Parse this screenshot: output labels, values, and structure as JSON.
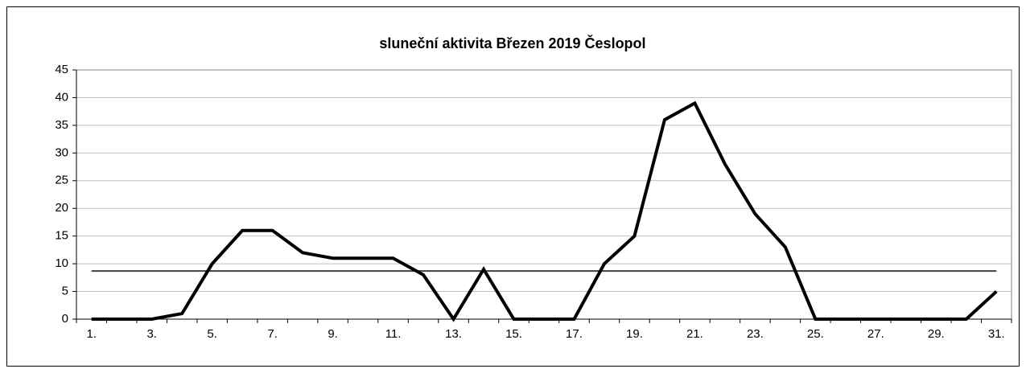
{
  "chart_data": {
    "type": "line",
    "title": "sluneční aktivita Březen 2019 Česlopol",
    "categories": [
      "1.",
      null,
      "3.",
      null,
      "5.",
      null,
      "7.",
      null,
      "9.",
      null,
      "11.",
      null,
      "13.",
      null,
      "15.",
      null,
      "17.",
      null,
      "19.",
      null,
      "21.",
      null,
      "23.",
      null,
      "25.",
      null,
      "27.",
      null,
      "29.",
      null,
      "31."
    ],
    "values": [
      0,
      0,
      0,
      1,
      10,
      16,
      16,
      12,
      11,
      11,
      11,
      8,
      0,
      9,
      0,
      0,
      0,
      10,
      15,
      36,
      39,
      28,
      19,
      13,
      0,
      0,
      0,
      0,
      0,
      0,
      5
    ],
    "color": "#000000",
    "reference_line": 8.7,
    "reference_color": "#404040",
    "ylim": [
      0,
      45
    ],
    "yticks": [
      0,
      5,
      10,
      15,
      20,
      25,
      30,
      35,
      40,
      45
    ],
    "grid": true
  }
}
